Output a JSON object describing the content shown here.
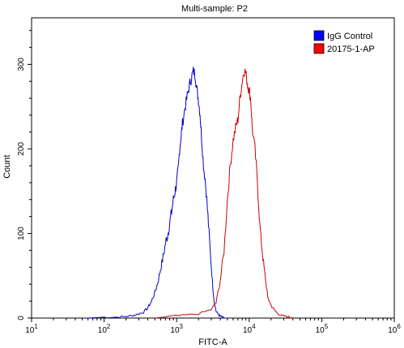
{
  "chart_data": {
    "type": "line",
    "title": "Multi-sample: P2",
    "xlabel": "FITC-A",
    "ylabel": "Count",
    "xscale": "log",
    "xlim": [
      10,
      1000000
    ],
    "ylim": [
      0,
      355
    ],
    "x_ticks": [
      {
        "value": 10,
        "base": "10",
        "exp": "1"
      },
      {
        "value": 100,
        "base": "10",
        "exp": "2"
      },
      {
        "value": 1000,
        "base": "10",
        "exp": "3"
      },
      {
        "value": 10000,
        "base": "10",
        "exp": "4"
      },
      {
        "value": 100000,
        "base": "10",
        "exp": "5"
      },
      {
        "value": 1000000,
        "base": "10",
        "exp": "6"
      }
    ],
    "y_ticks": [
      0,
      100,
      200,
      300
    ],
    "grid": false,
    "legend_position": "top-right",
    "series": [
      {
        "name": "IgG Control",
        "color": "#0000cc",
        "legend_color": "#0000ff",
        "x": [
          60,
          100,
          150,
          200,
          250,
          300,
          350,
          400,
          450,
          500,
          550,
          600,
          650,
          700,
          750,
          800,
          850,
          900,
          950,
          1000,
          1050,
          1100,
          1150,
          1200,
          1300,
          1400,
          1500,
          1600,
          1700,
          1800,
          1900,
          2000,
          2100,
          2200,
          2350,
          2500,
          2700,
          2900,
          3100,
          3300,
          3500,
          3800,
          4000,
          4300,
          4600,
          5000
        ],
        "y": [
          0,
          1,
          1,
          2,
          3,
          5,
          7,
          12,
          20,
          30,
          42,
          58,
          72,
          88,
          98,
          112,
          125,
          140,
          150,
          160,
          175,
          200,
          215,
          230,
          248,
          262,
          275,
          285,
          292,
          288,
          270,
          258,
          242,
          215,
          180,
          160,
          120,
          80,
          45,
          18,
          8,
          4,
          2,
          1,
          0,
          0
        ]
      },
      {
        "name": "20175-1-AP",
        "color": "#cc0000",
        "legend_color": "#ff0000",
        "x": [
          500,
          800,
          1200,
          2000,
          3000,
          3500,
          4000,
          4500,
          5000,
          5500,
          6000,
          6500,
          7000,
          7500,
          8000,
          8500,
          9000,
          9500,
          10000,
          10500,
          11000,
          12000,
          13000,
          14000,
          15000,
          16000,
          17000,
          18000,
          20000,
          22000,
          25000,
          28000,
          32000,
          36000,
          40000
        ],
        "y": [
          0,
          2,
          3,
          5,
          10,
          18,
          45,
          80,
          140,
          182,
          210,
          225,
          235,
          262,
          280,
          293,
          290,
          275,
          270,
          258,
          225,
          200,
          160,
          110,
          82,
          60,
          42,
          25,
          15,
          10,
          5,
          3,
          2,
          1,
          0
        ]
      }
    ]
  }
}
